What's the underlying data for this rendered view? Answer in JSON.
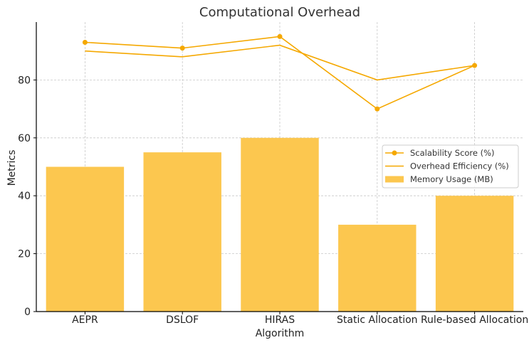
{
  "chart_data": {
    "type": "bar",
    "title": "Computational Overhead",
    "xlabel": "Algorithm",
    "ylabel": "Metrics",
    "categories": [
      "AEPR",
      "DSLOF",
      "HIRAS",
      "Static Allocation",
      "Rule-based Allocation"
    ],
    "ylim": [
      0,
      100
    ],
    "yticks": [
      0,
      20,
      40,
      60,
      80
    ],
    "grid": true,
    "legend_position": "center-right",
    "series": [
      {
        "name": "Memory Usage (MB)",
        "kind": "bar",
        "values": [
          50,
          55,
          60,
          30,
          40
        ],
        "color": "#FCC74F"
      },
      {
        "name": "Overhead Efficiency (%)",
        "kind": "line",
        "values": [
          90,
          88,
          92,
          80,
          85
        ],
        "color": "#F5A800"
      },
      {
        "name": "Scalability Score (%)",
        "kind": "line-marker",
        "values": [
          93,
          91,
          95,
          70,
          85
        ],
        "color": "#F5A800"
      }
    ],
    "legend_order": [
      "Scalability Score (%)",
      "Overhead Efficiency (%)",
      "Memory Usage (MB)"
    ]
  }
}
